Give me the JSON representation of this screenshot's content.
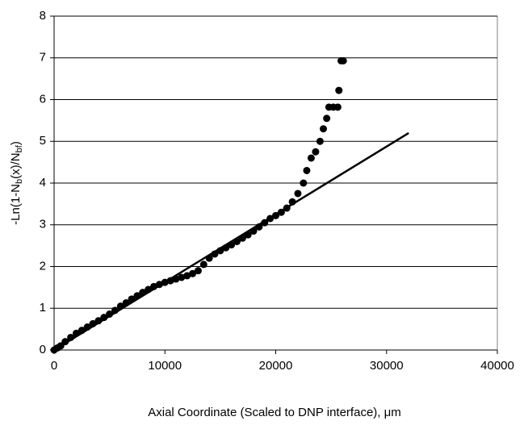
{
  "chart_data": {
    "type": "scatter",
    "x_label": "Axial Coordinate (Scaled to DNP interface), μm",
    "y_label": [
      "-Ln(1-N",
      "b",
      "(x)/N",
      "bf",
      ")"
    ],
    "xlim": [
      0,
      40000
    ],
    "ylim": [
      0,
      8
    ],
    "xticks": [
      0,
      10000,
      20000,
      30000,
      40000
    ],
    "yticks": [
      0,
      1,
      2,
      3,
      4,
      5,
      6,
      7,
      8
    ],
    "grid": true,
    "points": {
      "color": "#000000",
      "x": [
        0,
        300,
        600,
        1000,
        1500,
        2000,
        2500,
        3000,
        3500,
        4000,
        4500,
        5000,
        5500,
        6000,
        6500,
        7000,
        7500,
        8000,
        8500,
        9000,
        9500,
        10000,
        10500,
        11000,
        11500,
        12000,
        12500,
        13000,
        13500,
        14000,
        14500,
        15000,
        15500,
        16000,
        16500,
        17000,
        17500,
        18000,
        18500,
        19000,
        19500,
        20000,
        20500,
        21000,
        21500,
        22000,
        22500,
        22800,
        23200,
        23600,
        24000,
        24300,
        24600,
        24800,
        25200,
        25600,
        25700,
        25900,
        26100
      ],
      "y": [
        0,
        0.05,
        0.1,
        0.2,
        0.3,
        0.4,
        0.47,
        0.55,
        0.63,
        0.7,
        0.78,
        0.86,
        0.95,
        1.05,
        1.13,
        1.22,
        1.3,
        1.38,
        1.45,
        1.52,
        1.57,
        1.62,
        1.66,
        1.7,
        1.74,
        1.78,
        1.83,
        1.9,
        2.05,
        2.2,
        2.3,
        2.38,
        2.45,
        2.52,
        2.6,
        2.68,
        2.76,
        2.85,
        2.95,
        3.05,
        3.15,
        3.22,
        3.3,
        3.4,
        3.55,
        3.75,
        4.0,
        4.3,
        4.6,
        4.75,
        5.0,
        5.3,
        5.55,
        5.82,
        5.82,
        5.82,
        6.22,
        6.93,
        6.93
      ]
    },
    "fit_line": {
      "color": "#000000",
      "x": [
        0,
        32000
      ],
      "y": [
        0,
        5.2
      ]
    }
  }
}
